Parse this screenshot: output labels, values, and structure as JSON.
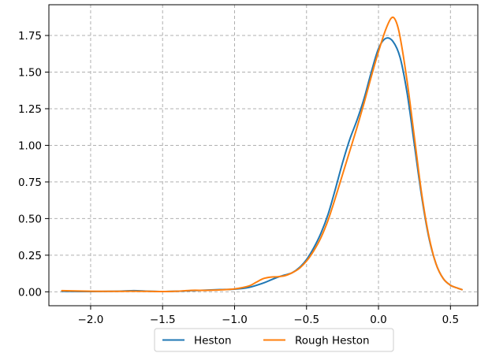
{
  "chart_data": {
    "type": "line",
    "title": "",
    "xlabel": "",
    "ylabel": "",
    "xlim": [
      -2.29,
      0.69
    ],
    "ylim": [
      -0.095,
      1.96
    ],
    "xticks": [
      -2.0,
      -1.5,
      -1.0,
      -0.5,
      0.0,
      0.5
    ],
    "xtick_labels": [
      "−2.0",
      "−1.5",
      "−1.0",
      "−0.5",
      "0.0",
      "0.5"
    ],
    "yticks": [
      0.0,
      0.25,
      0.5,
      0.75,
      1.0,
      1.25,
      1.5,
      1.75
    ],
    "ytick_labels": [
      "0.00",
      "0.25",
      "0.50",
      "0.75",
      "1.00",
      "1.25",
      "1.50",
      "1.75"
    ],
    "grid": true,
    "legend_placement": "bottom-center, below axes",
    "series": [
      {
        "name": "Heston",
        "color": "#1f77b4",
        "points": [
          [
            -2.2,
            0.003
          ],
          [
            -2.0,
            0.002
          ],
          [
            -1.8,
            0.004
          ],
          [
            -1.7,
            0.008
          ],
          [
            -1.6,
            0.004
          ],
          [
            -1.5,
            0.002
          ],
          [
            -1.4,
            0.004
          ],
          [
            -1.3,
            0.008
          ],
          [
            -1.2,
            0.011
          ],
          [
            -1.1,
            0.015
          ],
          [
            -1.0,
            0.018
          ],
          [
            -0.9,
            0.03
          ],
          [
            -0.8,
            0.06
          ],
          [
            -0.75,
            0.08
          ],
          [
            -0.7,
            0.1
          ],
          [
            -0.65,
            0.115
          ],
          [
            -0.6,
            0.13
          ],
          [
            -0.55,
            0.165
          ],
          [
            -0.5,
            0.22
          ],
          [
            -0.45,
            0.3
          ],
          [
            -0.4,
            0.4
          ],
          [
            -0.35,
            0.53
          ],
          [
            -0.3,
            0.7
          ],
          [
            -0.25,
            0.88
          ],
          [
            -0.2,
            1.04
          ],
          [
            -0.15,
            1.17
          ],
          [
            -0.1,
            1.32
          ],
          [
            -0.05,
            1.5
          ],
          [
            0.0,
            1.66
          ],
          [
            0.05,
            1.73
          ],
          [
            0.1,
            1.71
          ],
          [
            0.15,
            1.6
          ],
          [
            0.2,
            1.35
          ],
          [
            0.25,
            1.0
          ],
          [
            0.3,
            0.65
          ],
          [
            0.35,
            0.37
          ],
          [
            0.4,
            0.19
          ],
          [
            0.45,
            0.09
          ],
          [
            0.5,
            0.045
          ],
          [
            0.55,
            0.025
          ],
          [
            0.58,
            0.015
          ]
        ]
      },
      {
        "name": "Rough Heston",
        "color": "#ff7f0e",
        "points": [
          [
            -2.2,
            0.008
          ],
          [
            -2.0,
            0.004
          ],
          [
            -1.8,
            0.003
          ],
          [
            -1.7,
            0.004
          ],
          [
            -1.6,
            0.003
          ],
          [
            -1.5,
            0.002
          ],
          [
            -1.4,
            0.004
          ],
          [
            -1.3,
            0.01
          ],
          [
            -1.2,
            0.01
          ],
          [
            -1.1,
            0.013
          ],
          [
            -1.0,
            0.02
          ],
          [
            -0.9,
            0.04
          ],
          [
            -0.85,
            0.065
          ],
          [
            -0.8,
            0.09
          ],
          [
            -0.75,
            0.1
          ],
          [
            -0.7,
            0.103
          ],
          [
            -0.65,
            0.11
          ],
          [
            -0.6,
            0.13
          ],
          [
            -0.55,
            0.16
          ],
          [
            -0.5,
            0.21
          ],
          [
            -0.45,
            0.28
          ],
          [
            -0.4,
            0.37
          ],
          [
            -0.35,
            0.49
          ],
          [
            -0.3,
            0.64
          ],
          [
            -0.25,
            0.8
          ],
          [
            -0.2,
            0.96
          ],
          [
            -0.15,
            1.12
          ],
          [
            -0.1,
            1.29
          ],
          [
            -0.05,
            1.47
          ],
          [
            0.0,
            1.64
          ],
          [
            0.05,
            1.79
          ],
          [
            0.09,
            1.87
          ],
          [
            0.12,
            1.85
          ],
          [
            0.15,
            1.74
          ],
          [
            0.2,
            1.43
          ],
          [
            0.25,
            1.05
          ],
          [
            0.3,
            0.67
          ],
          [
            0.35,
            0.38
          ],
          [
            0.4,
            0.19
          ],
          [
            0.45,
            0.09
          ],
          [
            0.5,
            0.045
          ],
          [
            0.55,
            0.025
          ],
          [
            0.58,
            0.015
          ]
        ]
      }
    ]
  }
}
